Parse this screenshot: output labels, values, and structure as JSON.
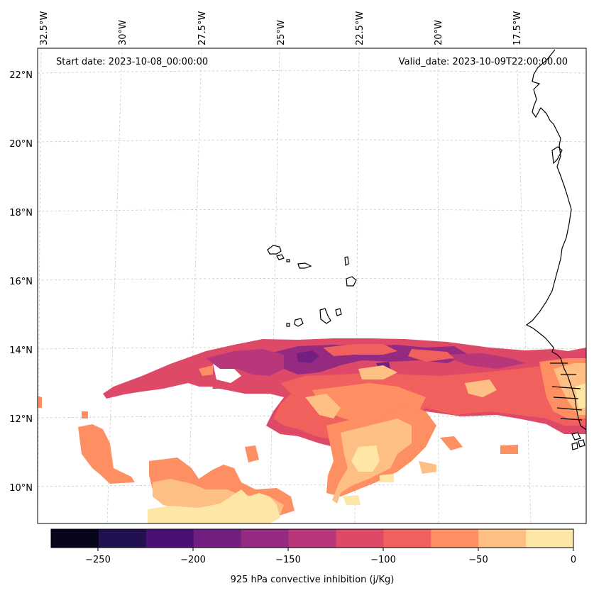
{
  "header": {
    "start_date": "Start date: 2023-10-08_00:00:00",
    "valid_date": "Valid_date: 2023-10-09T22:00:00.00"
  },
  "axes": {
    "lon_labels": [
      "32.5°W",
      "30°W",
      "27.5°W",
      "25°W",
      "22.5°W",
      "20°W",
      "17.5°W"
    ],
    "lat_labels": [
      "22°N",
      "20°N",
      "18°N",
      "16°N",
      "14°N",
      "12°N",
      "10°N"
    ]
  },
  "colorbar": {
    "label": "925 hPa convective inhibition (j/Kg)",
    "ticks": [
      "−250",
      "−200",
      "−150",
      "−100",
      "−50",
      "0"
    ],
    "bins": [
      {
        "from": -275,
        "to": -250,
        "color": "#07061c"
      },
      {
        "from": -250,
        "to": -225,
        "color": "#221150"
      },
      {
        "from": -225,
        "to": -200,
        "color": "#4c0f73"
      },
      {
        "from": -200,
        "to": -175,
        "color": "#721f81"
      },
      {
        "from": -175,
        "to": -150,
        "color": "#952b80"
      },
      {
        "from": -150,
        "to": -125,
        "color": "#b8377a"
      },
      {
        "from": -125,
        "to": -100,
        "color": "#de4968"
      },
      {
        "from": -100,
        "to": -75,
        "color": "#f1605d"
      },
      {
        "from": -75,
        "to": -50,
        "color": "#fe8f63"
      },
      {
        "from": -50,
        "to": -25,
        "color": "#febf84"
      },
      {
        "from": -25,
        "to": 0,
        "color": "#fde6a6"
      }
    ]
  }
}
